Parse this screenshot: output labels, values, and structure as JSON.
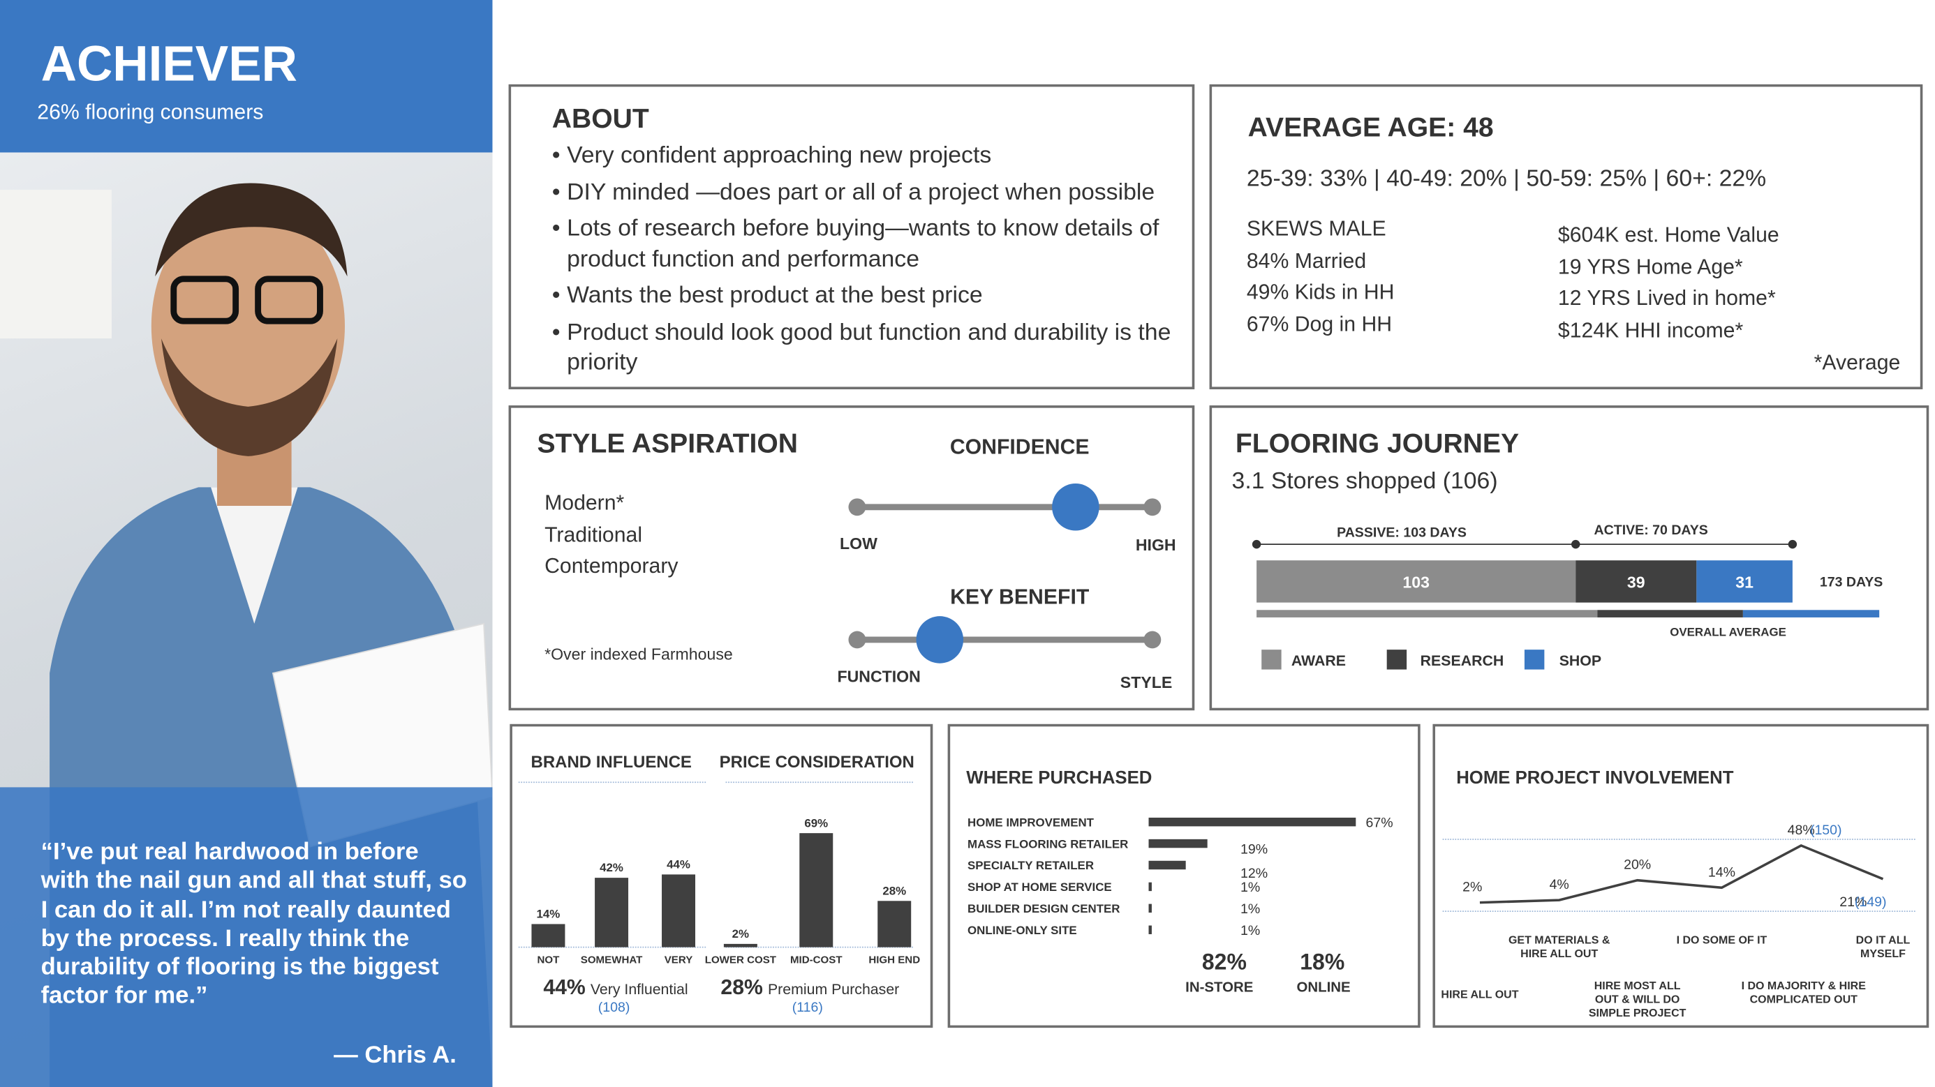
{
  "header": {
    "title": "ACHIEVER",
    "subtitle": "26% flooring consumers"
  },
  "quote": {
    "text": "“I’ve put real hardwood in before with the nail gun and all that stuff, so I can do it all. I’m not really daunted by the process. I really think the durability of flooring is the biggest factor for me.”",
    "author": "— Chris A."
  },
  "about": {
    "title": "ABOUT",
    "items": [
      "Very confident approaching new projects",
      "DIY minded —does part or all of a project when possible",
      "Lots of research before buying—wants to know details of product function and performance",
      "Wants the best product at the best price",
      "Product should look good but function and durability is the priority"
    ]
  },
  "age": {
    "title": "AVERAGE AGE: 48",
    "breakdown": "25-39: 33% | 40-49: 20% | 50-59: 25% | 60+: 22%",
    "left": [
      "SKEWS MALE",
      "84% Married",
      "49% Kids in HH",
      "67% Dog in HH"
    ],
    "right": [
      "$604K est. Home Value",
      "19 YRS Home Age*",
      "12 YRS Lived in home*",
      "$124K HHI income*"
    ],
    "note": "*Average"
  },
  "style": {
    "title": "STYLE ASPIRATION",
    "styles": [
      "Modern*",
      "Traditional",
      "Contemporary"
    ],
    "note": "*Over indexed Farmhouse",
    "confidence": {
      "title": "CONFIDENCE",
      "low": "LOW",
      "high": "HIGH",
      "value": 74,
      "xlim": [
        0,
        100
      ]
    },
    "key_benefit": {
      "title": "KEY BENEFIT",
      "low": "FUNCTION",
      "high": "STYLE",
      "value": 28,
      "xlim": [
        0,
        100
      ]
    }
  },
  "journey": {
    "title": "FLOORING JOURNEY",
    "subtitle": "3.1 Stores shopped (106)",
    "passive": "PASSIVE: 103 DAYS",
    "active": "ACTIVE: 70 DAYS",
    "series": [
      {
        "name": "AWARE",
        "color": "#8c8c8c",
        "value": 103
      },
      {
        "name": "RESEARCH",
        "color": "#404040",
        "value": 39
      },
      {
        "name": "SHOP",
        "color": "#3a78c3",
        "value": 31
      }
    ],
    "total_label": "173 DAYS",
    "xlim": [
      0,
      205
    ],
    "average": {
      "label": "OVERALL AVERAGE",
      "values": [
        110,
        47,
        44
      ]
    }
  },
  "brand_influence": {
    "type": "bar",
    "title": "BRAND INFLUENCE",
    "categories": [
      "NOT",
      "SOMEWHAT",
      "VERY"
    ],
    "values": [
      14,
      42,
      44
    ],
    "value_labels": [
      "14%",
      "42%",
      "44%"
    ],
    "ylim": [
      0,
      75
    ],
    "color": "#404040",
    "summary_value": "44%",
    "summary_text": "Very Influential",
    "index": "(108)"
  },
  "price_consideration": {
    "type": "bar",
    "title": "PRICE CONSIDERATION",
    "categories": [
      "LOWER COST",
      "MID-COST",
      "HIGH END"
    ],
    "values": [
      2,
      69,
      28
    ],
    "value_labels": [
      "2%",
      "69%",
      "28%"
    ],
    "ylim": [
      0,
      75
    ],
    "color": "#404040",
    "summary_value": "28%",
    "summary_text": "Premium Purchaser",
    "index": "(116)"
  },
  "where_purchased": {
    "type": "bar",
    "title": "WHERE PURCHASED",
    "categories": [
      "HOME IMPROVEMENT",
      "MASS FLOORING RETAILER",
      "SPECIALTY RETAILER",
      "SHOP AT HOME SERVICE",
      "BUILDER DESIGN CENTER",
      "ONLINE-ONLY SITE"
    ],
    "values": [
      67,
      19,
      12,
      1,
      1,
      1
    ],
    "value_labels": [
      "67%",
      "19%",
      "12%",
      "1%",
      "1%",
      "1%"
    ],
    "xlim": [
      0,
      70
    ],
    "color": "#404040",
    "in_store": {
      "value": "82%",
      "label": "IN-STORE"
    },
    "online": {
      "value": "18%",
      "label": "ONLINE"
    }
  },
  "home_project": {
    "type": "line",
    "title": "HOME PROJECT INVOLVEMENT",
    "categories": [
      "HIRE ALL OUT",
      "GET MATERIALS & HIRE ALL OUT",
      "HIRE MOST ALL OUT & WILL DO SIMPLE PROJECT",
      "I DO SOME OF IT",
      "I DO MAJORITY & HIRE COMPLICATED OUT",
      "DO IT ALL MYSELF"
    ],
    "values": [
      2,
      4,
      20,
      14,
      48,
      21
    ],
    "value_labels": [
      "2%",
      "4%",
      "20%",
      "14%",
      "48%",
      "21%"
    ],
    "index_labels": [
      null,
      null,
      null,
      null,
      "(150)",
      "(149)"
    ],
    "ylim": [
      0,
      60
    ],
    "color": "#404040"
  }
}
